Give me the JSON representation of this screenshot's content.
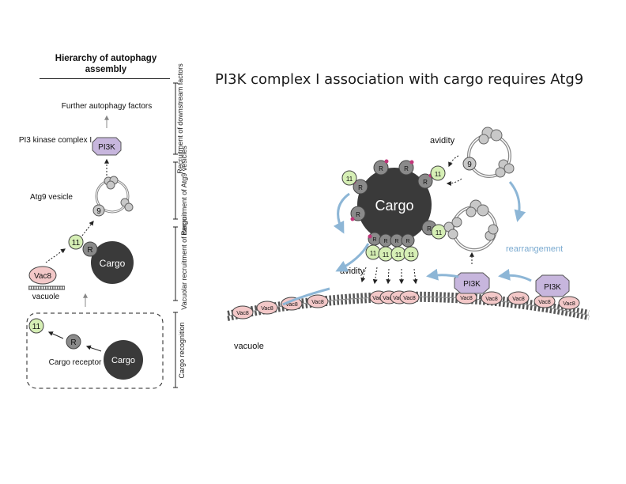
{
  "slide": {
    "title": "PI3K complex I association with cargo requires Atg9"
  },
  "left_panel": {
    "header": "Hierarchy of autophagy assembly",
    "further_factors": "Further autophagy factors",
    "pi3_kinase_label": "PI3 kinase complex I",
    "atg9_vesicle_label": "Atg9 vesicle",
    "vacuole_label": "vacuole",
    "cargo_receptor_label": "Cargo receptor",
    "stages": {
      "downstream": "Recruitment of downstream factors",
      "atg9_vesicles": "Recruitment of Atg9 vesicles",
      "vacuolar": "Vacuolar recruitment of cargo",
      "recognition": "Cargo recognition"
    }
  },
  "node_labels": {
    "pi3k": "PI3K",
    "atg9": "9",
    "atg11": "11",
    "receptor": "R",
    "cargo": "Cargo",
    "vac8": "Vac8"
  },
  "right_panel": {
    "avidity": "avidity",
    "rearrangement": "rearrangement",
    "vacuole_label": "vacuole"
  },
  "colors": {
    "cargo": "#3a3a3a",
    "atg11": "#d6efb5",
    "vac8": "#f3c8c8",
    "pi3k": "#c7b6dd",
    "receptor": "#8a8a8a",
    "accent_arrow": "#8db6d6",
    "rearrangement_text": "#7aaad0",
    "membrane_bead": "#555555",
    "phospho_dot": "#c2367a"
  }
}
